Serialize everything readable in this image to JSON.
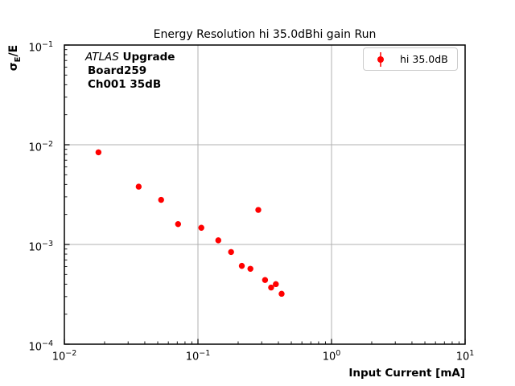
{
  "title": "Energy Resolution hi 35.0dBhi gain Run",
  "annotation": {
    "line1_italic": "ATLAS",
    "line1_bold": " Upgrade",
    "line2": "Board259",
    "line3": "Ch001 35dB"
  },
  "axes": {
    "xlabel": "Input Current [mA]",
    "ylabel_sigma": "σ",
    "ylabel_subscript": "E",
    "ylabel_rest": "/E"
  },
  "colors": {
    "series_red": "#ff0000",
    "grid_gray": "#b0b0b0",
    "legend_edge": "#cccccc",
    "axis_black": "#000000"
  },
  "chart_data": {
    "type": "scatter",
    "title": "Energy Resolution hi 35.0dBhi gain Run",
    "xlabel": "Input Current [mA]",
    "ylabel": "σ_E/E",
    "x_scale": "log",
    "y_scale": "log",
    "xlim": [
      0.01,
      10
    ],
    "ylim": [
      0.0001,
      0.1
    ],
    "x_tick_exponents": [
      -2,
      -1,
      0,
      1
    ],
    "y_tick_exponents": [
      -1,
      -2,
      -3,
      -4
    ],
    "grid": true,
    "legend": {
      "position": "upper right",
      "entries": [
        "hi 35.0dB"
      ]
    },
    "series": [
      {
        "name": "hi 35.0dB",
        "color": "#ff0000",
        "marker": "circle-errorbar",
        "points": [
          [
            0.018,
            0.0084
          ],
          [
            0.036,
            0.0038
          ],
          [
            0.053,
            0.0028
          ],
          [
            0.071,
            0.0016
          ],
          [
            0.106,
            0.00147
          ],
          [
            0.142,
            0.0011
          ],
          [
            0.177,
            0.00084
          ],
          [
            0.213,
            0.00061
          ],
          [
            0.247,
            0.00057
          ],
          [
            0.283,
            0.00222
          ],
          [
            0.318,
            0.00044
          ],
          [
            0.353,
            0.00037
          ],
          [
            0.383,
            0.0004
          ],
          [
            0.423,
            0.00032
          ]
        ]
      }
    ]
  }
}
